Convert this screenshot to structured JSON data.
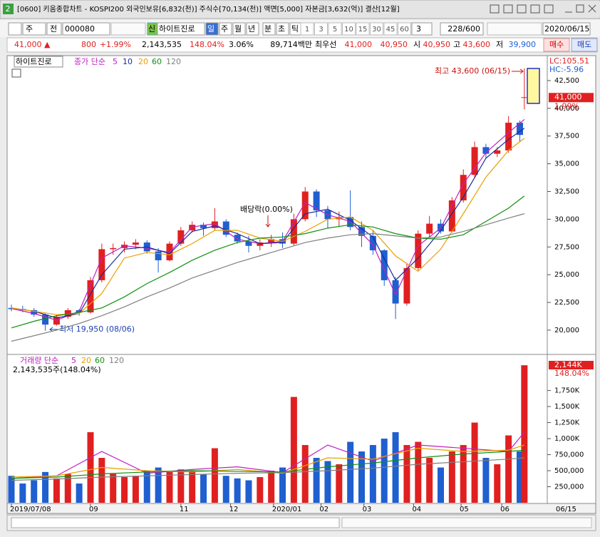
{
  "window_number": "2",
  "window_title": "[0600] 키움종합차트 - KOSPI200 외국인보유[6,832(천)] 주식수[70,134(천)] 액면[5,000] 자본금[3,632(억)] 결산[12월]",
  "toolbar": {
    "period_type": "주",
    "adjust": "전",
    "code": "000080",
    "new_label": "신",
    "name": "하이트진로",
    "periods": [
      "일",
      "주",
      "월",
      "년",
      "분",
      "초",
      "틱"
    ],
    "minutes": [
      "1",
      "3",
      "5",
      "10",
      "15",
      "30",
      "45",
      "60"
    ],
    "count": "3",
    "range": "228/600",
    "date": "2020/06/15"
  },
  "quote": {
    "price": "41,000 ▲",
    "change": "800",
    "change_pct": "+1.99%",
    "volume": "2,143,535",
    "volume_ratio": "148.04%",
    "turnover": "3.06%",
    "amount": "89,714백만",
    "best_label": "최우선",
    "ask": "41,000",
    "bid": "40,950",
    "open_label": "시",
    "open": "40,950",
    "high_label": "고",
    "high": "43,600",
    "low_label": "저",
    "low": "39,900",
    "buy": "매수",
    "sell": "매도"
  },
  "chart_data": [
    {
      "type": "candlestick",
      "name": "하이트진로",
      "legend_title": "종가 단순",
      "x": [
        0,
        5,
        10,
        15,
        20,
        25,
        30,
        35,
        40,
        45,
        50,
        55,
        60,
        65,
        70,
        75,
        80,
        85,
        90,
        95,
        100,
        105,
        110,
        115,
        120,
        125,
        130,
        135,
        140,
        145,
        150,
        155,
        160,
        165,
        170,
        175,
        180,
        185,
        190,
        195,
        200,
        205,
        210,
        215,
        220,
        225,
        227
      ],
      "open": [
        22000,
        21900,
        21800,
        21400,
        20500,
        21200,
        21800,
        21600,
        24500,
        27300,
        27400,
        27700,
        27900,
        27100,
        26300,
        27800,
        29000,
        29500,
        29200,
        29800,
        28600,
        28000,
        27600,
        27900,
        28200,
        27800,
        30000,
        32500,
        30800,
        30000,
        30200,
        29300,
        28500,
        27200,
        24500,
        22400,
        25600,
        28700,
        29600,
        28900,
        31700,
        34000,
        36500,
        35900,
        36200,
        38700,
        40950
      ],
      "high": [
        22300,
        22200,
        22000,
        21500,
        21400,
        22000,
        21900,
        24800,
        27800,
        27800,
        28000,
        28200,
        28100,
        27400,
        28000,
        29300,
        29800,
        29700,
        31000,
        30000,
        28800,
        28500,
        28200,
        28600,
        28800,
        30500,
        32900,
        32700,
        31200,
        30700,
        32600,
        29800,
        29000,
        27300,
        24800,
        26000,
        29000,
        30300,
        30000,
        32000,
        34500,
        37000,
        36800,
        36500,
        39300,
        38900,
        43600
      ],
      "low": [
        21700,
        21600,
        21200,
        19950,
        20400,
        21000,
        21300,
        21500,
        24300,
        26800,
        27000,
        27300,
        26900,
        25200,
        26200,
        27600,
        28800,
        28500,
        29000,
        28400,
        27800,
        27000,
        27200,
        27500,
        27400,
        27600,
        29800,
        30200,
        29200,
        29300,
        29000,
        27500,
        26800,
        24000,
        21000,
        22200,
        25400,
        28400,
        28700,
        28800,
        31500,
        33800,
        35500,
        35600,
        36000,
        37000,
        39900
      ],
      "close": [
        21900,
        21800,
        21400,
        20500,
        21200,
        21800,
        21600,
        24500,
        27300,
        27400,
        27700,
        27900,
        27100,
        26300,
        27800,
        29000,
        29500,
        29200,
        29800,
        28600,
        28000,
        27600,
        27900,
        28200,
        27800,
        30000,
        32500,
        30800,
        30000,
        30200,
        29300,
        28500,
        27200,
        24500,
        22400,
        25600,
        28700,
        29600,
        28900,
        31700,
        34000,
        36500,
        35900,
        36200,
        38700,
        37600,
        41000
      ],
      "up_color": "#e02020",
      "down_color": "#1f5fd0",
      "xlim": [
        0,
        228
      ],
      "ylim": [
        17940,
        44620
      ],
      "yticks": [
        {
          "value": 20000,
          "label": "20,000"
        },
        {
          "value": 22500,
          "label": "22,500"
        },
        {
          "value": 25000,
          "label": "25,000"
        },
        {
          "value": 27500,
          "label": "27,500"
        },
        {
          "value": 30000,
          "label": "30,000"
        },
        {
          "value": 32500,
          "label": "32,500"
        },
        {
          "value": 35000,
          "label": "35,000"
        },
        {
          "value": 37500,
          "label": "37,500"
        },
        {
          "value": 40000,
          "label": "40,000"
        },
        {
          "value": 42500,
          "label": "42,500"
        }
      ],
      "series": [
        {
          "name": "5",
          "color": "#c020c0",
          "x": [
            0,
            10,
            20,
            30,
            40,
            50,
            60,
            70,
            80,
            90,
            100,
            110,
            120,
            130,
            140,
            150,
            160,
            170,
            180,
            190,
            200,
            210,
            220,
            227
          ],
          "values": [
            21950,
            21500,
            20900,
            21700,
            26500,
            27600,
            27400,
            27000,
            29300,
            29600,
            28200,
            27800,
            28000,
            31500,
            30400,
            29800,
            27700,
            23200,
            27600,
            29200,
            33200,
            36000,
            37800,
            39000
          ]
        },
        {
          "name": "10",
          "color": "#1a2a9c",
          "x": [
            0,
            10,
            20,
            30,
            40,
            50,
            60,
            70,
            80,
            90,
            100,
            110,
            120,
            130,
            140,
            150,
            160,
            170,
            180,
            190,
            200,
            210,
            220,
            227
          ],
          "values": [
            22000,
            21700,
            21100,
            21500,
            25000,
            27300,
            27500,
            26900,
            28900,
            29400,
            28700,
            27800,
            27900,
            30500,
            30900,
            29900,
            28400,
            24500,
            26500,
            29000,
            32000,
            35500,
            37200,
            38200
          ]
        },
        {
          "name": "20",
          "color": "#e8a000",
          "x": [
            0,
            10,
            20,
            30,
            40,
            50,
            60,
            70,
            80,
            90,
            100,
            110,
            120,
            130,
            140,
            150,
            160,
            170,
            180,
            190,
            200,
            210,
            220,
            227
          ],
          "values": [
            22000,
            21700,
            21400,
            21500,
            23300,
            26500,
            27000,
            26800,
            27800,
            29000,
            29000,
            28300,
            28000,
            28900,
            30000,
            30200,
            29000,
            26700,
            25300,
            27300,
            30500,
            33800,
            36200,
            37300
          ]
        },
        {
          "name": "60",
          "color": "#109010",
          "x": [
            0,
            10,
            20,
            30,
            40,
            50,
            60,
            70,
            80,
            90,
            100,
            110,
            120,
            130,
            140,
            150,
            160,
            170,
            180,
            190,
            200,
            210,
            220,
            227
          ],
          "values": [
            20200,
            20800,
            21300,
            21600,
            22000,
            23000,
            24200,
            25200,
            26300,
            27200,
            27900,
            28300,
            28400,
            28700,
            29200,
            29500,
            29300,
            28700,
            28300,
            28200,
            28600,
            29800,
            31000,
            32100
          ]
        },
        {
          "name": "120",
          "color": "#808080",
          "x": [
            0,
            10,
            20,
            30,
            40,
            50,
            60,
            70,
            80,
            90,
            100,
            110,
            120,
            130,
            140,
            150,
            160,
            170,
            180,
            190,
            200,
            210,
            220,
            227
          ],
          "values": [
            19000,
            19500,
            20000,
            20600,
            21300,
            22100,
            23000,
            23800,
            24700,
            25400,
            26100,
            26700,
            27300,
            27900,
            28300,
            28600,
            28700,
            28500,
            28300,
            28400,
            28900,
            29500,
            30100,
            30500
          ]
        }
      ],
      "price_label": "41,000",
      "change_label": "1.99%",
      "lc": "LC:105.51",
      "hc": "HC:-5.96",
      "annotations": [
        "최고 43,600 (06/15)",
        "최저 19,950 (08/06)",
        "배당락(0.00%)"
      ]
    },
    {
      "type": "bar",
      "legend_title": "거래량 단순",
      "summary": "2,143,535주(148.04%)",
      "x": [
        0,
        5,
        10,
        15,
        20,
        25,
        30,
        35,
        40,
        45,
        50,
        55,
        60,
        65,
        70,
        75,
        80,
        85,
        90,
        95,
        100,
        105,
        110,
        115,
        120,
        125,
        130,
        135,
        140,
        145,
        150,
        155,
        160,
        165,
        170,
        175,
        180,
        185,
        190,
        195,
        200,
        205,
        210,
        215,
        220,
        225,
        227
      ],
      "values": [
        420000,
        300000,
        350000,
        480000,
        380000,
        450000,
        300000,
        1100000,
        700000,
        450000,
        400000,
        420000,
        500000,
        550000,
        480000,
        520000,
        500000,
        450000,
        850000,
        420000,
        380000,
        350000,
        400000,
        500000,
        550000,
        1650000,
        900000,
        700000,
        650000,
        600000,
        950000,
        800000,
        900000,
        1000000,
        1100000,
        900000,
        950000,
        700000,
        550000,
        800000,
        900000,
        1250000,
        700000,
        600000,
        1050000,
        800000,
        2143535
      ],
      "xlim": [
        0,
        228
      ],
      "ylim": [
        0,
        2290000
      ],
      "yticks": [
        {
          "value": 250000,
          "label": "250,000"
        },
        {
          "value": 500000,
          "label": "500,000"
        },
        {
          "value": 750000,
          "label": "750,000"
        },
        {
          "value": 1000000,
          "label": "1,000K"
        },
        {
          "value": 1250000,
          "label": "1,250K"
        },
        {
          "value": 1500000,
          "label": "1,500K"
        },
        {
          "value": 1750000,
          "label": "1,750K"
        }
      ],
      "xticks": [
        {
          "value": 0,
          "label": "2019/07/08"
        },
        {
          "value": 35,
          "label": "09"
        },
        {
          "value": 75,
          "label": "11"
        },
        {
          "value": 97,
          "label": "12"
        },
        {
          "value": 116,
          "label": "2020/01"
        },
        {
          "value": 137,
          "label": "02"
        },
        {
          "value": 156,
          "label": "03"
        },
        {
          "value": 178,
          "label": "04"
        },
        {
          "value": 199,
          "label": "05"
        },
        {
          "value": 217,
          "label": "06"
        }
      ],
      "last_date": "06/15",
      "last_label": "2,144K",
      "last_pct": "148.04%",
      "series": [
        {
          "name": "5",
          "color": "#c020c0",
          "x": [
            0,
            20,
            40,
            60,
            80,
            100,
            120,
            140,
            160,
            180,
            200,
            220,
            227
          ],
          "values": [
            380000,
            420000,
            800000,
            460000,
            520000,
            560000,
            470000,
            900000,
            650000,
            900000,
            850000,
            800000,
            1100000
          ]
        },
        {
          "name": "20",
          "color": "#e8a000",
          "x": [
            0,
            20,
            40,
            60,
            80,
            100,
            120,
            140,
            160,
            180,
            200,
            220,
            227
          ],
          "values": [
            400000,
            420000,
            550000,
            500000,
            480000,
            520000,
            460000,
            700000,
            680000,
            850000,
            800000,
            820000,
            900000
          ]
        },
        {
          "name": "60",
          "color": "#109010",
          "x": [
            0,
            20,
            40,
            60,
            80,
            100,
            120,
            140,
            160,
            180,
            200,
            220,
            227
          ],
          "values": [
            380000,
            400000,
            450000,
            480000,
            500000,
            490000,
            480000,
            560000,
            620000,
            700000,
            760000,
            800000,
            820000
          ]
        },
        {
          "name": "120",
          "color": "#808080",
          "x": [
            0,
            20,
            40,
            60,
            80,
            100,
            120,
            140,
            160,
            180,
            200,
            220,
            227
          ],
          "values": [
            350000,
            370000,
            400000,
            420000,
            440000,
            460000,
            470000,
            500000,
            540000,
            600000,
            640000,
            680000,
            700000
          ]
        }
      ]
    }
  ]
}
